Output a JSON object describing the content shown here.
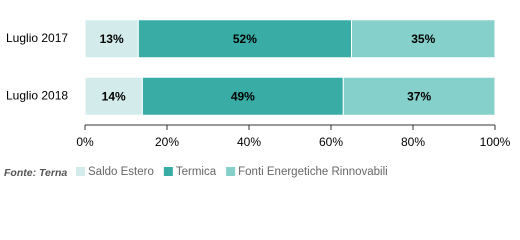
{
  "chart_data": {
    "type": "stacked-bar-horizontal",
    "categories": [
      "Luglio 2017",
      "Luglio 2018"
    ],
    "series": [
      {
        "name": "Saldo Estero",
        "color": "#d3eceb",
        "values": [
          13,
          14
        ],
        "value_labels": [
          "13%",
          "14%"
        ]
      },
      {
        "name": "Termica",
        "color": "#38aca5",
        "values": [
          52,
          49
        ],
        "value_labels": [
          "52%",
          "49%"
        ]
      },
      {
        "name": "Fonti Energetiche Rinnovabili",
        "color": "#86d0cb",
        "values": [
          35,
          37
        ],
        "value_labels": [
          "35%",
          "37%"
        ]
      }
    ],
    "xlim": [
      0,
      100
    ],
    "xticks": [
      {
        "value": 0,
        "label": "0%"
      },
      {
        "value": 20,
        "label": "20%"
      },
      {
        "value": 40,
        "label": "40%"
      },
      {
        "value": 60,
        "label": "60%"
      },
      {
        "value": 80,
        "label": "80%"
      },
      {
        "value": 100,
        "label": "100%"
      }
    ],
    "source": "Fonte: Terna",
    "legend": "bottom"
  }
}
